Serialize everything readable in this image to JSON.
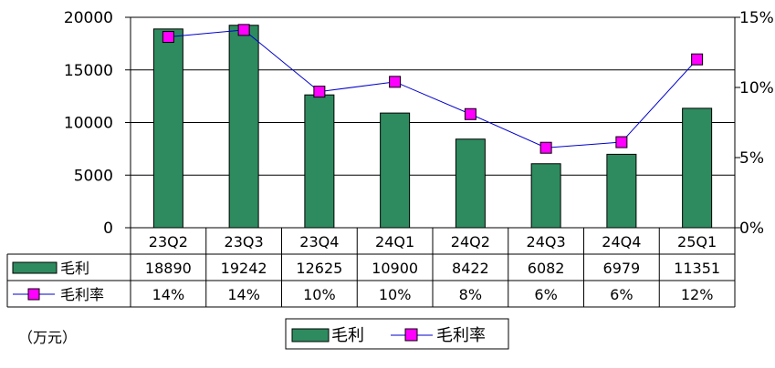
{
  "chart_data": {
    "type": "bar",
    "categories": [
      "23Q2",
      "23Q3",
      "23Q4",
      "24Q1",
      "24Q2",
      "24Q3",
      "24Q4",
      "25Q1"
    ],
    "series": [
      {
        "name": "毛利",
        "kind": "bar",
        "axis": "left",
        "color": "#2e8b5f",
        "values": [
          18890,
          19242,
          12625,
          10900,
          8422,
          6082,
          6979,
          11351
        ]
      },
      {
        "name": "毛利率",
        "kind": "line",
        "axis": "right",
        "color": "#ff00ff",
        "line_color": "#0000cc",
        "values": [
          0.136,
          0.141,
          0.097,
          0.104,
          0.081,
          0.057,
          0.061,
          0.12
        ]
      }
    ],
    "table": {
      "rows": [
        {
          "label": "毛利",
          "cells": [
            "18890",
            "19242",
            "12625",
            "10900",
            "8422",
            "6082",
            "6979",
            "11351"
          ]
        },
        {
          "label": "毛利率",
          "cells": [
            "14%",
            "14%",
            "10%",
            "10%",
            "8%",
            "6%",
            "6%",
            "12%"
          ]
        }
      ]
    },
    "y_left": {
      "ticks": [
        "0",
        "5000",
        "10000",
        "15000",
        "20000"
      ],
      "range": [
        0,
        20000
      ]
    },
    "y_right": {
      "ticks": [
        "0%",
        "5%",
        "10%",
        "15%"
      ],
      "range": [
        0,
        0.15
      ]
    },
    "unit_label": "（万元）",
    "legend": {
      "placement": "bottom-center",
      "items": [
        "毛利",
        "毛利率"
      ]
    },
    "grid": true
  }
}
